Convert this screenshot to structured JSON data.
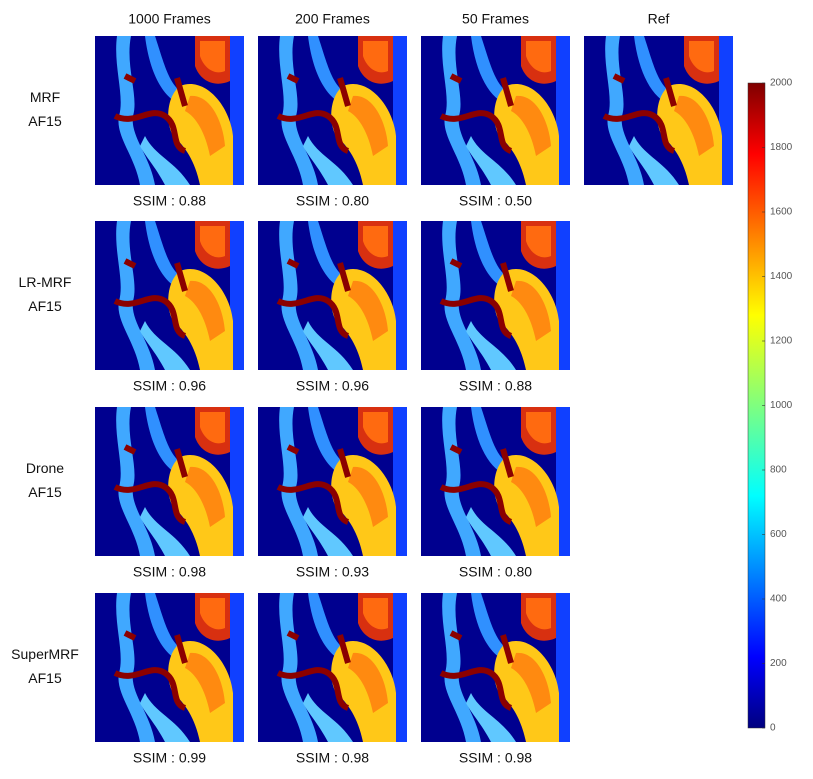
{
  "columns": [
    "1000 Frames",
    "200 Frames",
    "50 Frames",
    "Ref"
  ],
  "rows": [
    {
      "label": [
        "MRF",
        "AF15"
      ],
      "ssim": [
        "SSIM : 0.88",
        "SSIM : 0.80",
        "SSIM : 0.50"
      ]
    },
    {
      "label": [
        "LR-MRF",
        "AF15"
      ],
      "ssim": [
        "SSIM : 0.96",
        "SSIM : 0.96",
        "SSIM : 0.88"
      ]
    },
    {
      "label": [
        "Drone",
        "AF15"
      ],
      "ssim": [
        "SSIM : 0.98",
        "SSIM : 0.93",
        "SSIM : 0.80"
      ]
    },
    {
      "label": [
        "SuperMRF",
        "AF15"
      ],
      "ssim": [
        "SSIM : 0.99",
        "SSIM : 0.98",
        "SSIM : 0.98"
      ]
    }
  ],
  "colorbar": {
    "lim": [
      0,
      2000
    ],
    "ticks": [
      0,
      200,
      400,
      600,
      800,
      1000,
      1200,
      1400,
      1600,
      1800,
      2000
    ]
  }
}
